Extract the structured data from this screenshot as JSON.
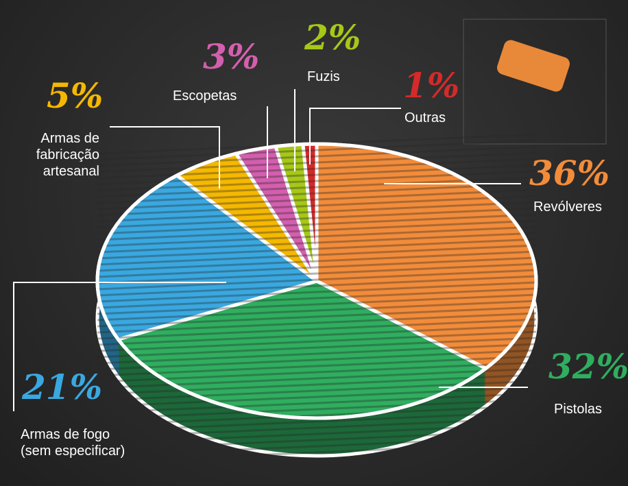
{
  "chart_data": {
    "type": "pie",
    "categories": [
      "Revólveres",
      "Pistolas",
      "Armas de fogo (sem especificar)",
      "Armas de fabricação artesanal",
      "Escopetas",
      "Fuzis",
      "Outras"
    ],
    "values": [
      36,
      32,
      21,
      5,
      3,
      2,
      1
    ],
    "value_labels": [
      "36%",
      "32%",
      "21%",
      "5%",
      "3%",
      "2%",
      "1%"
    ],
    "colors": [
      "#f28c3a",
      "#2fae5f",
      "#3aa8e0",
      "#f5b800",
      "#d45fae",
      "#a6c817",
      "#d42a2a"
    ]
  }
}
